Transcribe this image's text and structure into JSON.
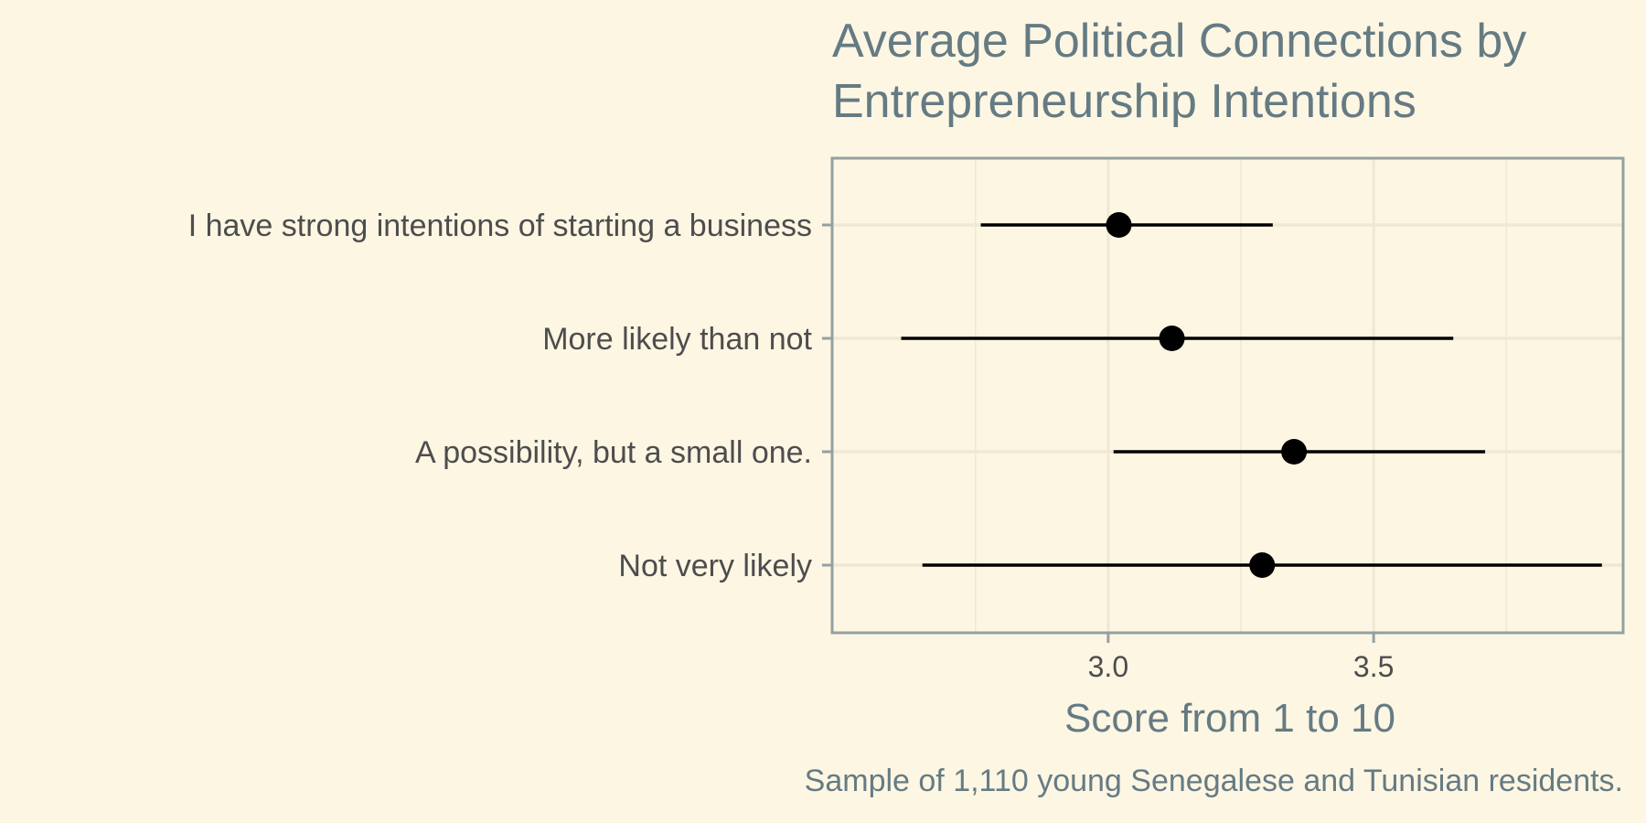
{
  "chart_data": {
    "type": "errorbar",
    "title_lines": [
      "Average Political Connections by",
      "Entrepreneurship Intentions"
    ],
    "xlabel": "Score from 1 to 10",
    "ylabel": "",
    "caption": "Sample of 1,110 young Senegalese and Tunisian residents.",
    "xlim": [
      2.48,
      3.97
    ],
    "x_ticks": [
      3.0,
      3.5
    ],
    "x_tick_labels": [
      "3.0",
      "3.5"
    ],
    "grid": true,
    "legend": "none",
    "categories": [
      "I have strong intentions of starting a business",
      "More likely than not",
      "A possibility, but a small one.",
      "Not very likely"
    ],
    "points": [
      {
        "mean": 3.02,
        "low": 2.76,
        "high": 3.31
      },
      {
        "mean": 3.12,
        "low": 2.61,
        "high": 3.65
      },
      {
        "mean": 3.35,
        "low": 3.01,
        "high": 3.71
      },
      {
        "mean": 3.29,
        "low": 2.65,
        "high": 3.93
      }
    ]
  },
  "colors": {
    "background": "#fdf6e3",
    "panel_border": "#93a1a1",
    "grid": "#eee8d5",
    "point": "#000000",
    "title": "#657b83",
    "label": "#4d4d4d"
  }
}
